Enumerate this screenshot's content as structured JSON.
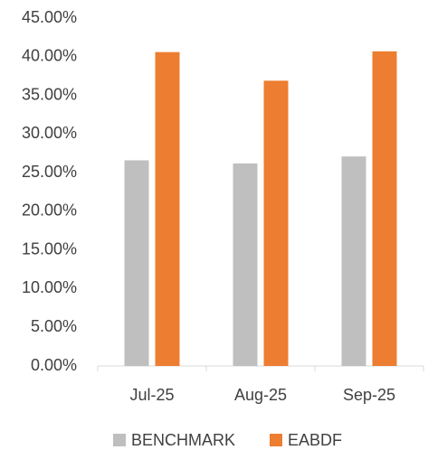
{
  "chart_data": {
    "type": "bar",
    "categories": [
      "Jul-25",
      "Aug-25",
      "Sep-25"
    ],
    "series": [
      {
        "name": "BENCHMARK",
        "color": "#bfbfbf",
        "values": [
          26.6,
          26.2,
          27.1
        ]
      },
      {
        "name": "EABDF",
        "color": "#ed7d31",
        "values": [
          40.6,
          36.9,
          40.7
        ]
      }
    ],
    "ylim": [
      0,
      45
    ],
    "yticks": [
      {
        "value": 0,
        "label": "0.00%"
      },
      {
        "value": 5,
        "label": "5.00%"
      },
      {
        "value": 10,
        "label": "10.00%"
      },
      {
        "value": 15,
        "label": "15.00%"
      },
      {
        "value": 20,
        "label": "20.00%"
      },
      {
        "value": 25,
        "label": "25.00%"
      },
      {
        "value": 30,
        "label": "30.00%"
      },
      {
        "value": 35,
        "label": "35.00%"
      },
      {
        "value": 40,
        "label": "40.00%"
      },
      {
        "value": 45,
        "label": "45.00%"
      }
    ],
    "grid": false,
    "legend": "bottom"
  }
}
